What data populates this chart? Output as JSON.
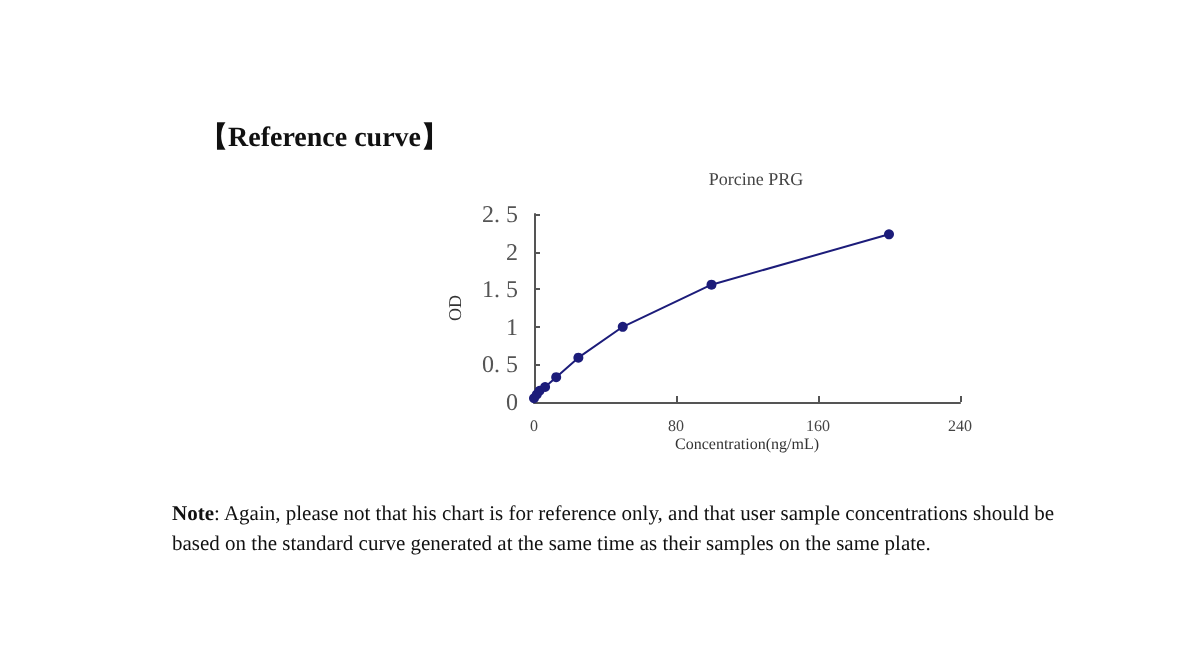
{
  "chart_data": {
    "type": "line",
    "title": "Porcine PRG",
    "xlabel": "Concentration(ng/mL)",
    "ylabel": "OD",
    "annotations": [
      "【Reference curve】",
      "Note: Again, please not that his chart is for reference only, and that user sample concentrations should be based on the standard curve generated at the same time as their samples on the same plate."
    ],
    "x": [
      0,
      1.56,
      3.125,
      6.25,
      12.5,
      25,
      50,
      100,
      200
    ],
    "series": [
      {
        "color": "#1c1c7a",
        "values": [
          0.05,
          0.1,
          0.15,
          0.2,
          0.33,
          0.59,
          1.0,
          1.56,
          2.23
        ]
      }
    ],
    "xlim": [
      0,
      240
    ],
    "xticks": [
      0,
      80,
      160,
      240
    ],
    "ylim": [
      0,
      2.5
    ],
    "yticks": [
      0,
      {
        "value": 0.5,
        "label": "0. 5"
      },
      1,
      {
        "value": 1.5,
        "label": "1. 5"
      },
      2,
      {
        "value": 2.5,
        "label": "2. 5"
      }
    ],
    "marker": "circle",
    "line_style": "solid",
    "grid": false
  }
}
